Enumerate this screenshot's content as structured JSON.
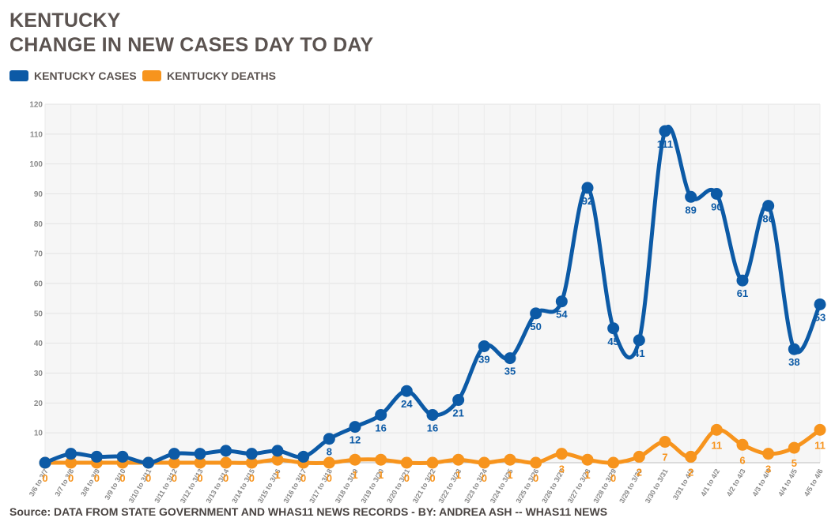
{
  "chart_data": {
    "type": "line",
    "title": "KENTUCKY",
    "subtitle": "CHANGE IN NEW CASES DAY TO DAY",
    "ylim": [
      0,
      120
    ],
    "yticks": [
      10,
      20,
      30,
      40,
      50,
      60,
      70,
      80,
      90,
      100,
      110,
      120
    ],
    "grid": true,
    "legend_position": "top-left",
    "categories": [
      "3/6 to 3/7",
      "3/7 to 3/8",
      "3/8 to 3/9",
      "3/9 to 3/10",
      "3/10 to 3/11",
      "3/11 to 3/12",
      "3/12 to 3/13",
      "3/13 to 3/14",
      "3/14 to 3/15",
      "3/15 to 3/16",
      "3/16 to 3/17",
      "3/17 to 3/18",
      "3/18 to 3/19",
      "3/19 to 3/20",
      "3/20 to 3/21",
      "3/21 to 3/22",
      "3/22 to 3/23",
      "3/23 to 3/24",
      "3/24 to 3/25",
      "3/25 to 3/26",
      "3/26 to 3/27",
      "3/27 to 3/28",
      "3/28 to 3/29",
      "3/29 to 3/30",
      "3/30 to 3/31",
      "3/31 to 4/1",
      "4/1 to 4/2",
      "4/2 to 4/3",
      "4/3 to 4/4",
      "4/4 to 4/5",
      "4/5 to 4/6"
    ],
    "series": [
      {
        "name": "KENTUCKY CASES",
        "color": "#0c5aa6",
        "values": [
          0,
          3,
          2,
          2,
          0,
          3,
          3,
          4,
          3,
          4,
          2,
          8,
          12,
          16,
          24,
          16,
          21,
          39,
          35,
          50,
          54,
          92,
          45,
          41,
          111,
          89,
          90,
          61,
          86,
          38,
          53
        ]
      },
      {
        "name": "KENTUCKY DEATHS",
        "color": "#f7941d",
        "values": [
          0,
          0,
          0,
          0,
          0,
          0,
          0,
          0,
          0,
          1,
          0,
          0,
          1,
          1,
          0,
          0,
          1,
          0,
          1,
          0,
          3,
          1,
          0,
          2,
          7,
          2,
          11,
          6,
          3,
          5,
          11
        ]
      }
    ],
    "source": "Source: DATA FROM STATE GOVERNMENT AND WHAS11 NEWS RECORDS - BY: ANDREA ASH -- WHAS11 NEWS"
  }
}
